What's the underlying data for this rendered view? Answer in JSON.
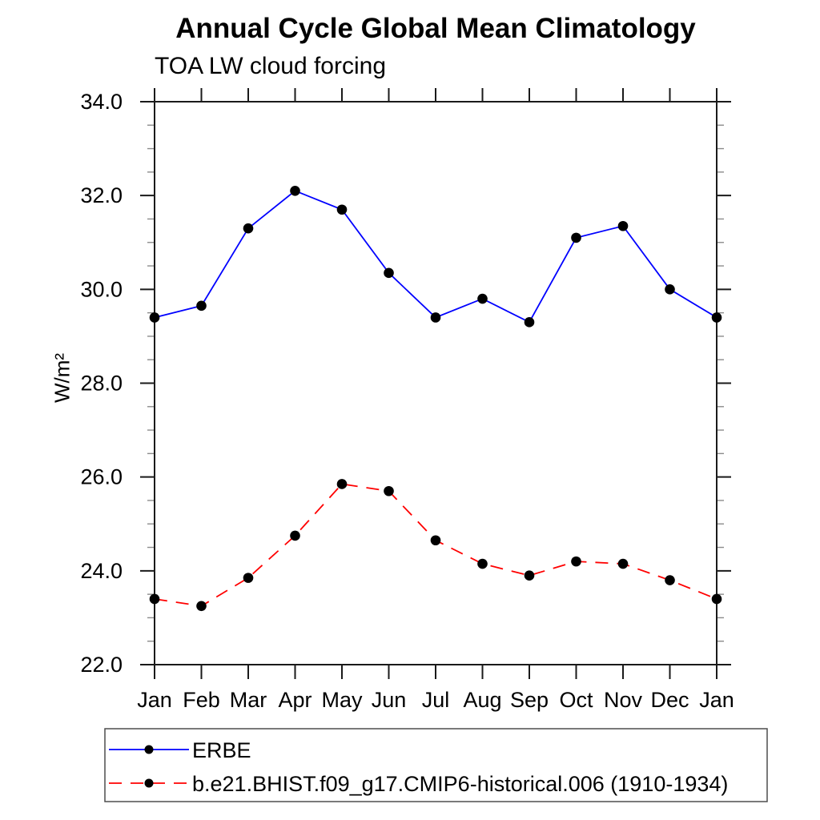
{
  "title": "Annual Cycle Global Mean Climatology",
  "subtitle": "TOA LW cloud forcing",
  "colors": {
    "background": "#ffffff",
    "axis": "#1a1a1a",
    "minor_tick": "#8c8c8c",
    "erbe_line": "#0000ff",
    "model_line": "#ff0000",
    "marker": "#000000",
    "legend_border": "#4d4d4d"
  },
  "chart_data": {
    "type": "line",
    "title": "Annual Cycle Global Mean Climatology",
    "subtitle": "TOA LW cloud forcing",
    "ylabel": "W/m²",
    "xlabel": "",
    "categories": [
      "Jan",
      "Feb",
      "Mar",
      "Apr",
      "May",
      "Jun",
      "Jul",
      "Aug",
      "Sep",
      "Oct",
      "Nov",
      "Dec",
      "Jan"
    ],
    "series": [
      {
        "name": "ERBE",
        "color": "#0000ff",
        "line_style": "solid",
        "marker": "filled-circle",
        "values": [
          29.4,
          29.65,
          31.3,
          32.1,
          31.7,
          30.35,
          29.4,
          29.8,
          29.3,
          31.1,
          31.35,
          30.0,
          29.4
        ]
      },
      {
        "name": "b.e21.BHIST.f09_g17.CMIP6-historical.006 (1910-1934)",
        "color": "#ff0000",
        "line_style": "dashed",
        "marker": "filled-circle",
        "values": [
          23.4,
          23.25,
          23.85,
          24.75,
          25.85,
          25.7,
          24.65,
          24.15,
          23.9,
          24.2,
          24.15,
          23.8,
          23.4
        ]
      }
    ],
    "ylim": [
      22.0,
      34.0
    ],
    "ytick_step": 2.0,
    "ytick_minor_step": 0.5,
    "ytick_labels": [
      "34.0",
      "32.0",
      "30.0",
      "28.0",
      "26.0",
      "24.0",
      "22.0"
    ],
    "marker": {
      "shape": "circle",
      "color": "#000000"
    },
    "grid": false,
    "legend_position": "bottom-left"
  }
}
